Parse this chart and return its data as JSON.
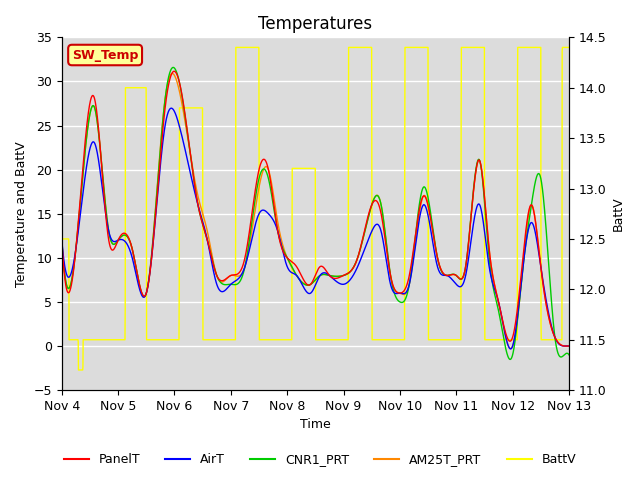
{
  "title": "Temperatures",
  "xlabel": "Time",
  "ylabel_left": "Temperature and BattV",
  "ylabel_right": "BattV",
  "ylim_left": [
    -5,
    35
  ],
  "ylim_right": [
    11.0,
    14.5
  ],
  "background_color": "#ffffff",
  "plot_bg_color": "#dcdcdc",
  "grid_color": "#ffffff",
  "annotation_text": "SW_Temp",
  "annotation_color": "#cc0000",
  "annotation_bg": "#ffff99",
  "annotation_edge": "#cc0000",
  "legend_items": [
    {
      "label": "PanelT",
      "color": "#ff0000"
    },
    {
      "label": "AirT",
      "color": "#0000ff"
    },
    {
      "label": "CNR1_PRT",
      "color": "#00cc00"
    },
    {
      "label": "AM25T_PRT",
      "color": "#ff8800"
    },
    {
      "label": "BattV",
      "color": "#ffff00"
    }
  ],
  "xticklabels": [
    "Nov 4",
    "Nov 5",
    "Nov 6",
    "Nov 7",
    "Nov 8",
    "Nov 9",
    "Nov 10",
    "Nov 11",
    "Nov 12",
    "Nov 13"
  ],
  "xtick_positions": [
    0,
    24,
    48,
    72,
    96,
    120,
    144,
    168,
    192,
    216
  ],
  "title_fontsize": 12,
  "label_fontsize": 9,
  "tick_fontsize": 9,
  "legend_fontsize": 9
}
